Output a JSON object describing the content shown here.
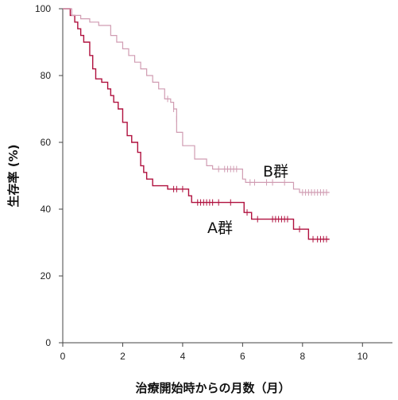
{
  "chart_data": {
    "type": "line",
    "subtype": "kaplan-meier",
    "title": "",
    "xlabel": "治療開始時からの月数（月）",
    "ylabel": "生存率 (%)",
    "xlim": [
      0,
      11
    ],
    "ylim": [
      0,
      100
    ],
    "xticks": [
      "0",
      "2",
      "4",
      "6",
      "8",
      "10"
    ],
    "yticks": [
      "0",
      "20",
      "40",
      "60",
      "80",
      "100"
    ],
    "grid": false,
    "series": [
      {
        "name": "A群",
        "color": "#b0103e",
        "steps": [
          [
            0.0,
            100
          ],
          [
            0.25,
            98
          ],
          [
            0.4,
            96
          ],
          [
            0.5,
            94
          ],
          [
            0.6,
            92
          ],
          [
            0.7,
            90
          ],
          [
            0.9,
            86
          ],
          [
            1.0,
            82
          ],
          [
            1.1,
            79
          ],
          [
            1.3,
            78
          ],
          [
            1.5,
            76
          ],
          [
            1.6,
            74
          ],
          [
            1.7,
            72
          ],
          [
            1.85,
            70
          ],
          [
            2.0,
            66
          ],
          [
            2.15,
            62
          ],
          [
            2.3,
            60
          ],
          [
            2.5,
            57
          ],
          [
            2.6,
            53
          ],
          [
            2.7,
            51
          ],
          [
            2.8,
            49
          ],
          [
            3.0,
            47
          ],
          [
            3.5,
            46
          ],
          [
            4.2,
            44
          ],
          [
            4.3,
            42
          ],
          [
            6.05,
            39
          ],
          [
            6.3,
            37
          ],
          [
            7.7,
            34
          ],
          [
            8.2,
            31
          ]
        ],
        "end_x": 8.9,
        "censored": [
          [
            3.7,
            46
          ],
          [
            3.8,
            46
          ],
          [
            4.0,
            46
          ],
          [
            4.5,
            42
          ],
          [
            4.6,
            42
          ],
          [
            4.7,
            42
          ],
          [
            4.8,
            42
          ],
          [
            4.9,
            42
          ],
          [
            5.0,
            42
          ],
          [
            5.2,
            42
          ],
          [
            5.6,
            42
          ],
          [
            6.15,
            39
          ],
          [
            6.5,
            37
          ],
          [
            7.0,
            37
          ],
          [
            7.1,
            37
          ],
          [
            7.2,
            37
          ],
          [
            7.3,
            37
          ],
          [
            7.4,
            37
          ],
          [
            7.5,
            37
          ],
          [
            7.9,
            34
          ],
          [
            8.35,
            31
          ],
          [
            8.5,
            31
          ],
          [
            8.6,
            31
          ],
          [
            8.7,
            31
          ],
          [
            8.8,
            31
          ]
        ],
        "label": "A群"
      },
      {
        "name": "B群",
        "color": "#d09cb2",
        "steps": [
          [
            0.0,
            100
          ],
          [
            0.3,
            98
          ],
          [
            0.6,
            97
          ],
          [
            0.9,
            96
          ],
          [
            1.2,
            95
          ],
          [
            1.6,
            92
          ],
          [
            1.8,
            90
          ],
          [
            2.0,
            88
          ],
          [
            2.2,
            86
          ],
          [
            2.4,
            84
          ],
          [
            2.6,
            82
          ],
          [
            2.8,
            80
          ],
          [
            3.0,
            78
          ],
          [
            3.2,
            76
          ],
          [
            3.4,
            73
          ],
          [
            3.6,
            72
          ],
          [
            3.7,
            70
          ],
          [
            3.8,
            63
          ],
          [
            4.0,
            59
          ],
          [
            4.4,
            55
          ],
          [
            4.8,
            53
          ],
          [
            5.0,
            52
          ],
          [
            6.0,
            49
          ],
          [
            6.1,
            48
          ],
          [
            7.7,
            46
          ],
          [
            7.9,
            45
          ]
        ],
        "end_x": 8.9,
        "censored": [
          [
            3.5,
            73
          ],
          [
            3.7,
            70
          ],
          [
            3.8,
            67
          ],
          [
            5.2,
            52
          ],
          [
            5.4,
            52
          ],
          [
            5.5,
            52
          ],
          [
            5.6,
            52
          ],
          [
            5.7,
            52
          ],
          [
            5.8,
            52
          ],
          [
            6.25,
            48
          ],
          [
            6.4,
            48
          ],
          [
            6.8,
            48
          ],
          [
            7.0,
            48
          ],
          [
            7.4,
            48
          ],
          [
            8.0,
            45
          ],
          [
            8.1,
            45
          ],
          [
            8.2,
            45
          ],
          [
            8.3,
            45
          ],
          [
            8.4,
            45
          ],
          [
            8.5,
            45
          ],
          [
            8.6,
            45
          ],
          [
            8.7,
            45
          ],
          [
            8.8,
            45
          ]
        ],
        "label": "B群"
      }
    ]
  }
}
